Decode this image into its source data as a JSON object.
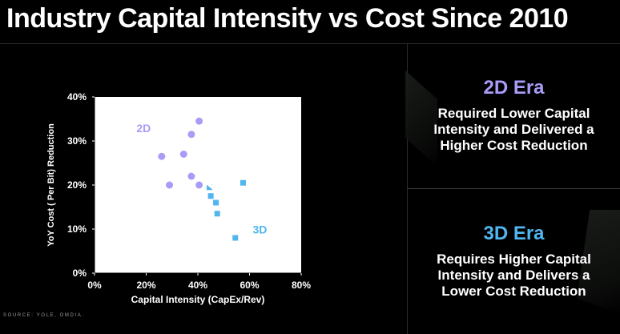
{
  "title": "Industry Capital Intensity vs Cost Since 2010",
  "panels": {
    "era_2d": {
      "heading": "2D Era",
      "lines": [
        "Required Lower Capital",
        "Intensity and Delivered a",
        "Higher Cost Reduction"
      ],
      "color": "#a89cf7"
    },
    "era_3d": {
      "heading": "3D Era",
      "lines": [
        "Requires Higher Capital",
        "Intensity and Delivers a",
        "Lower Cost Reduction"
      ],
      "color": "#4fb6ef"
    }
  },
  "source": "SOURCE: YOLE, OMDIA.",
  "chart_data": {
    "type": "scatter",
    "title": "",
    "xlabel": "Capital Intensity (CapEx/Rev)",
    "ylabel": "YoY Cost ( Per Bit) Reduction",
    "xlim": [
      0,
      80
    ],
    "ylim": [
      0,
      40
    ],
    "x_ticks": [
      0,
      20,
      40,
      60,
      80
    ],
    "y_ticks": [
      0,
      10,
      20,
      30,
      40
    ],
    "x_tick_labels": [
      "0%",
      "20%",
      "40%",
      "60%",
      "80%"
    ],
    "y_tick_labels": [
      "0%",
      "10%",
      "20%",
      "30%",
      "40%"
    ],
    "series": [
      {
        "name": "2D",
        "marker": "circle",
        "color": "#a89cf7",
        "points": [
          [
            26,
            26.5
          ],
          [
            29,
            20
          ],
          [
            34.5,
            27
          ],
          [
            37.5,
            31.5
          ],
          [
            37.5,
            22
          ],
          [
            40.5,
            34.5
          ],
          [
            40.5,
            20
          ]
        ]
      },
      {
        "name": "3D",
        "marker": "square",
        "color": "#4fb6ef",
        "points": [
          [
            44.5,
            19.5
          ],
          [
            45,
            17.5
          ],
          [
            47,
            16
          ],
          [
            47.5,
            13.5
          ],
          [
            54.5,
            8
          ],
          [
            57.5,
            20.5
          ]
        ]
      }
    ],
    "arrow": {
      "from": [
        24,
        30
      ],
      "to": [
        61,
        12
      ],
      "color": "#ffffff"
    },
    "annotations": [
      {
        "text": "2D",
        "x": 19,
        "y": 32,
        "color": "#a89cf7"
      },
      {
        "text": "3D",
        "x": 64,
        "y": 9,
        "color": "#4fb6ef"
      }
    ]
  }
}
